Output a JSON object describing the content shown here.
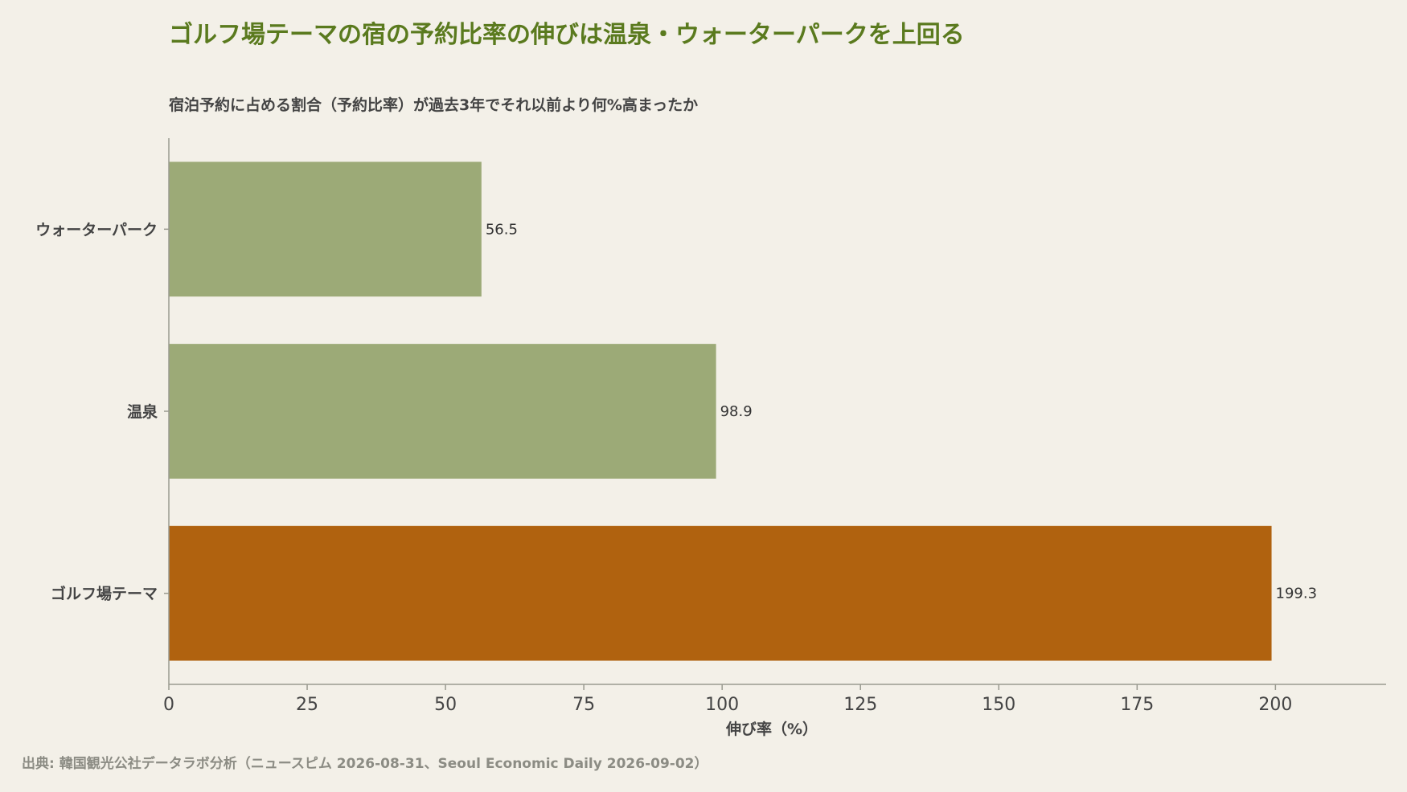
{
  "chart_data": {
    "type": "bar",
    "orientation": "horizontal",
    "title": "ゴルフ場テーマの宿の予約比率の伸びは温泉・ウォーターパークを上回る",
    "subtitle": "宿泊予約に占める割合（予約比率）が過去3年でそれ以前より何%高まったか",
    "xlabel": "伸び率（%）",
    "ylabel": "",
    "categories": [
      "ウォーターパーク",
      "温泉",
      "ゴルフ場テーマ"
    ],
    "values": [
      56.5,
      98.9,
      199.3
    ],
    "data_labels": [
      "56.5",
      "98.9",
      "199.3"
    ],
    "xlim": [
      0,
      220
    ],
    "xticks": [
      0,
      25,
      50,
      75,
      100,
      125,
      150,
      175,
      200
    ],
    "xtick_labels": [
      "0",
      "25",
      "50",
      "75",
      "100",
      "125",
      "150",
      "175",
      "200"
    ],
    "grid": false,
    "legend": "none",
    "highlight_category": "ゴルフ場テーマ",
    "colors": {
      "default_bar": "#9caa77",
      "highlight_bar": "#b0620f",
      "title": "#5a7a1e",
      "text": "#444444",
      "axis": "#9a9a90",
      "background": "#f3f0e8"
    },
    "source": "出典: 韓国観光公社データラボ分析（ニュースピム 2026-08-31、Seoul Economic Daily 2026-09-02）"
  }
}
